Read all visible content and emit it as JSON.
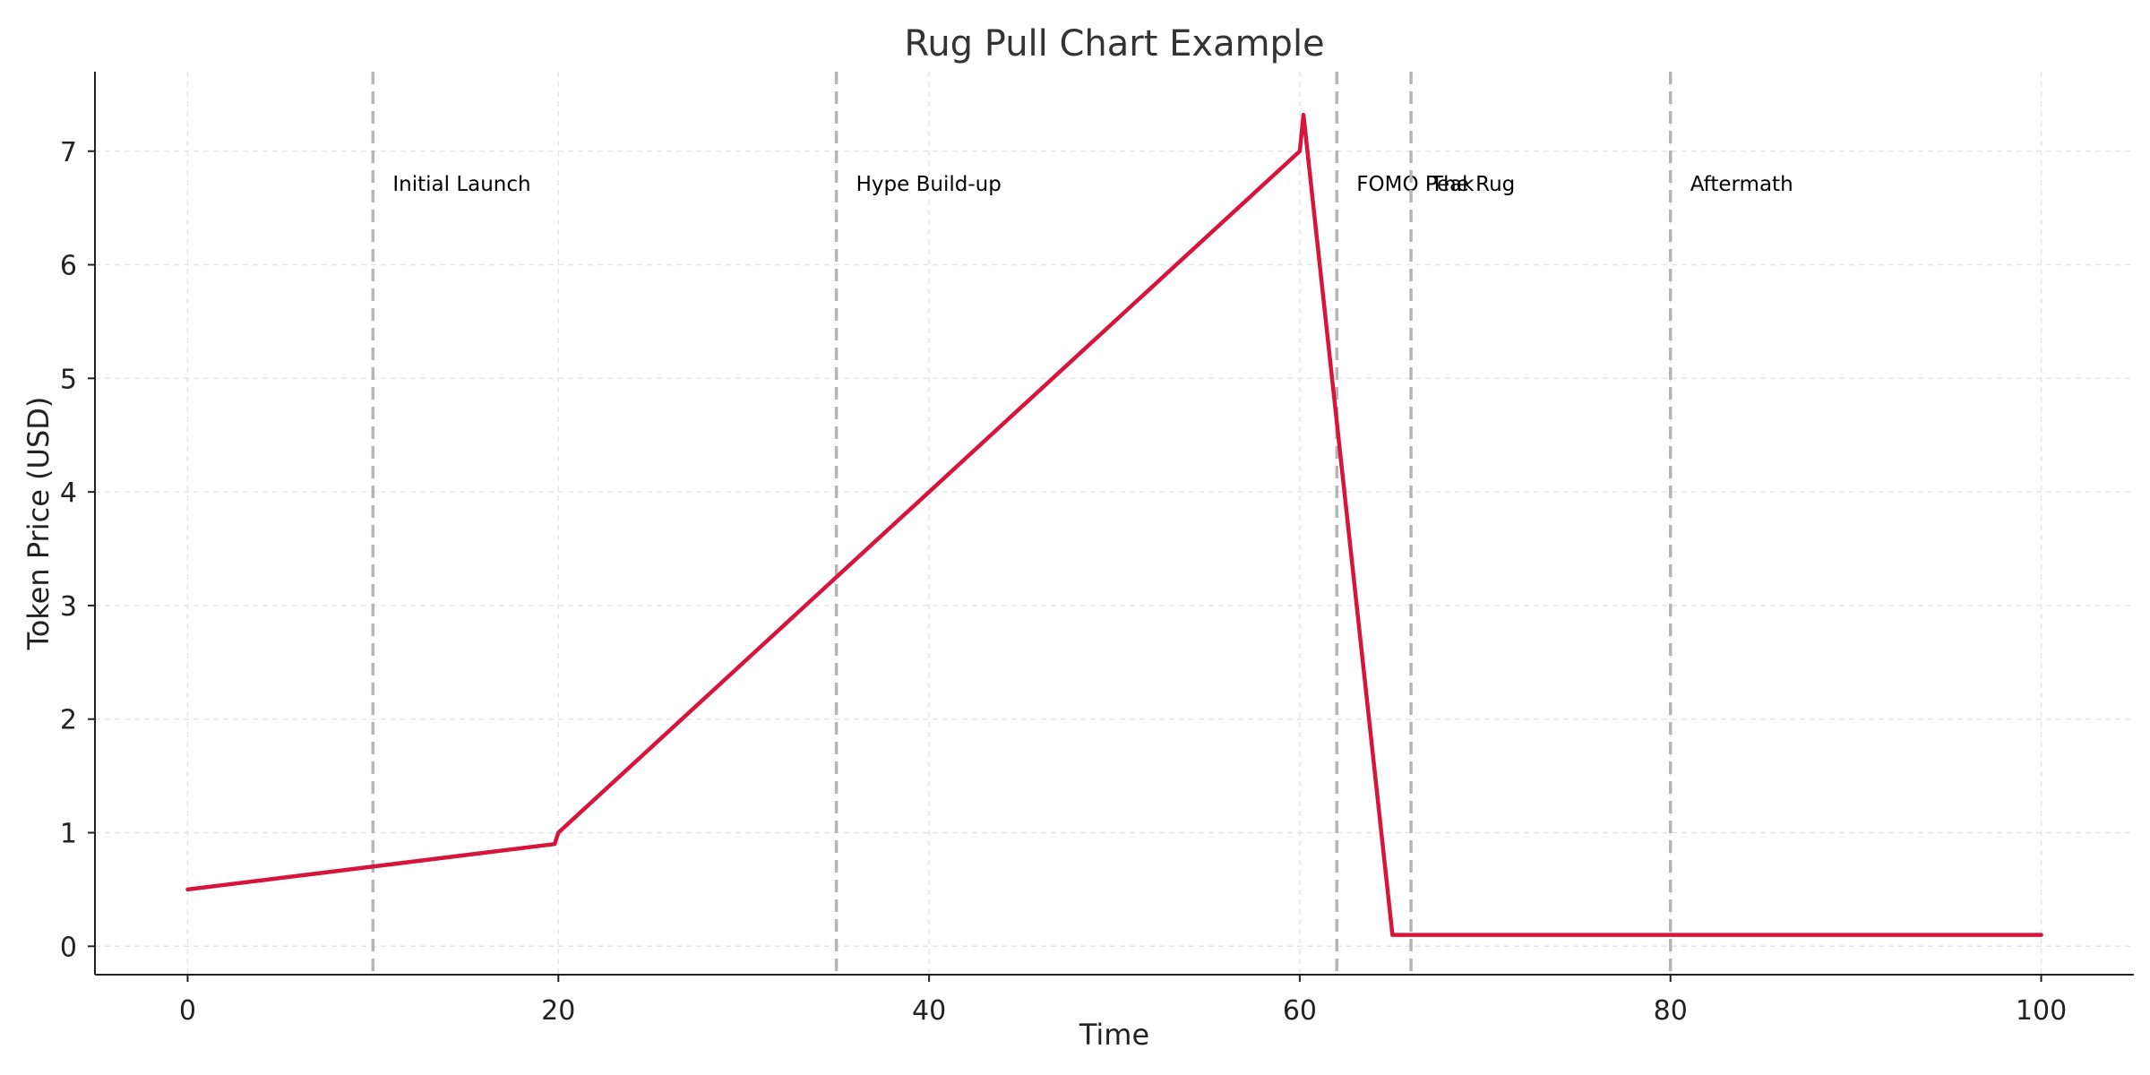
{
  "chart_data": {
    "type": "line",
    "title": "Rug Pull Chart Example",
    "xlabel": "Time",
    "ylabel": "Token Price (USD)",
    "xlim": [
      -5,
      105
    ],
    "ylim": [
      -0.25,
      7.7
    ],
    "xticks": [
      0,
      20,
      40,
      60,
      80,
      100
    ],
    "yticks": [
      0,
      1,
      2,
      3,
      4,
      5,
      6,
      7
    ],
    "grid": true,
    "series": [
      {
        "color": "#d7143c",
        "x": [
          0,
          19.8,
          20,
          60,
          60.2,
          65,
          100
        ],
        "y": [
          0.5,
          0.9,
          1.0,
          7.0,
          7.32,
          0.1,
          0.1
        ]
      }
    ],
    "phases": [
      {
        "x": 10,
        "label": "Initial Launch"
      },
      {
        "x": 35,
        "label": "Hype Build-up"
      },
      {
        "x": 62,
        "label": "FOMO Peak"
      },
      {
        "x": 66,
        "label": "The Rug"
      },
      {
        "x": 80,
        "label": "Aftermath"
      }
    ]
  }
}
